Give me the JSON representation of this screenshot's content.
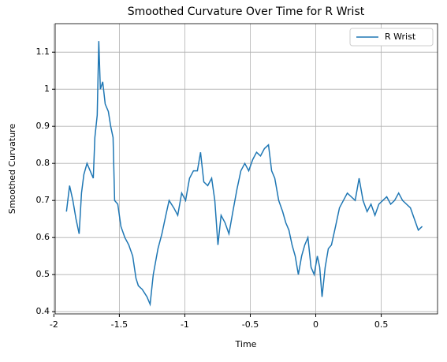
{
  "chart_data": {
    "type": "line",
    "title": "Smoothed Curvature Over Time for R Wrist",
    "x_label": "Time",
    "y_label": "Smoothed Curvature",
    "x": [
      -1.904,
      -1.88,
      -1.855,
      -1.831,
      -1.807,
      -1.789,
      -1.771,
      -1.747,
      -1.723,
      -1.699,
      -1.687,
      -1.669,
      -1.657,
      -1.645,
      -1.627,
      -1.608,
      -1.584,
      -1.566,
      -1.548,
      -1.536,
      -1.512,
      -1.488,
      -1.458,
      -1.428,
      -1.398,
      -1.373,
      -1.355,
      -1.325,
      -1.289,
      -1.265,
      -1.241,
      -1.205,
      -1.175,
      -1.145,
      -1.12,
      -1.084,
      -1.054,
      -1.024,
      -0.994,
      -0.964,
      -0.934,
      -0.904,
      -0.88,
      -0.855,
      -0.825,
      -0.795,
      -0.771,
      -0.747,
      -0.723,
      -0.693,
      -0.663,
      -0.633,
      -0.602,
      -0.572,
      -0.542,
      -0.512,
      -0.482,
      -0.452,
      -0.422,
      -0.392,
      -0.361,
      -0.337,
      -0.313,
      -0.283,
      -0.253,
      -0.229,
      -0.205,
      -0.181,
      -0.157,
      -0.133,
      -0.108,
      -0.084,
      -0.06,
      -0.036,
      -0.012,
      0.012,
      0.03,
      0.048,
      0.072,
      0.096,
      0.12,
      0.151,
      0.181,
      0.211,
      0.241,
      0.271,
      0.301,
      0.331,
      0.361,
      0.392,
      0.422,
      0.452,
      0.482,
      0.512,
      0.542,
      0.572,
      0.602,
      0.633,
      0.663,
      0.693,
      0.723,
      0.753,
      0.783,
      0.813
    ],
    "series": [
      {
        "name": "R Wrist",
        "color": "#1f77b4",
        "values": [
          0.67,
          0.74,
          0.7,
          0.65,
          0.61,
          0.72,
          0.77,
          0.8,
          0.78,
          0.76,
          0.87,
          0.93,
          1.13,
          1.0,
          1.02,
          0.96,
          0.94,
          0.9,
          0.87,
          0.7,
          0.69,
          0.63,
          0.6,
          0.58,
          0.55,
          0.49,
          0.47,
          0.46,
          0.44,
          0.42,
          0.5,
          0.57,
          0.61,
          0.66,
          0.7,
          0.68,
          0.66,
          0.72,
          0.7,
          0.76,
          0.78,
          0.78,
          0.83,
          0.75,
          0.74,
          0.76,
          0.7,
          0.58,
          0.66,
          0.64,
          0.61,
          0.67,
          0.73,
          0.78,
          0.8,
          0.78,
          0.81,
          0.83,
          0.82,
          0.84,
          0.85,
          0.78,
          0.76,
          0.7,
          0.67,
          0.64,
          0.62,
          0.58,
          0.55,
          0.5,
          0.55,
          0.58,
          0.6,
          0.52,
          0.5,
          0.55,
          0.52,
          0.44,
          0.52,
          0.57,
          0.58,
          0.63,
          0.68,
          0.7,
          0.72,
          0.71,
          0.7,
          0.76,
          0.7,
          0.67,
          0.69,
          0.66,
          0.69,
          0.7,
          0.71,
          0.69,
          0.7,
          0.72,
          0.7,
          0.69,
          0.68,
          0.65,
          0.62,
          0.63
        ]
      }
    ],
    "xlim": [
      -1.99,
      0.93
    ],
    "xticks": [
      -2.0,
      -1.5,
      -1.0,
      -0.5,
      0.0,
      0.5
    ],
    "ylim": [
      0.394,
      1.177
    ],
    "yticks": [
      0.4,
      0.5,
      0.6,
      0.7,
      0.8,
      0.9,
      1.0,
      1.1
    ],
    "grid": true,
    "legend": "upper right"
  }
}
